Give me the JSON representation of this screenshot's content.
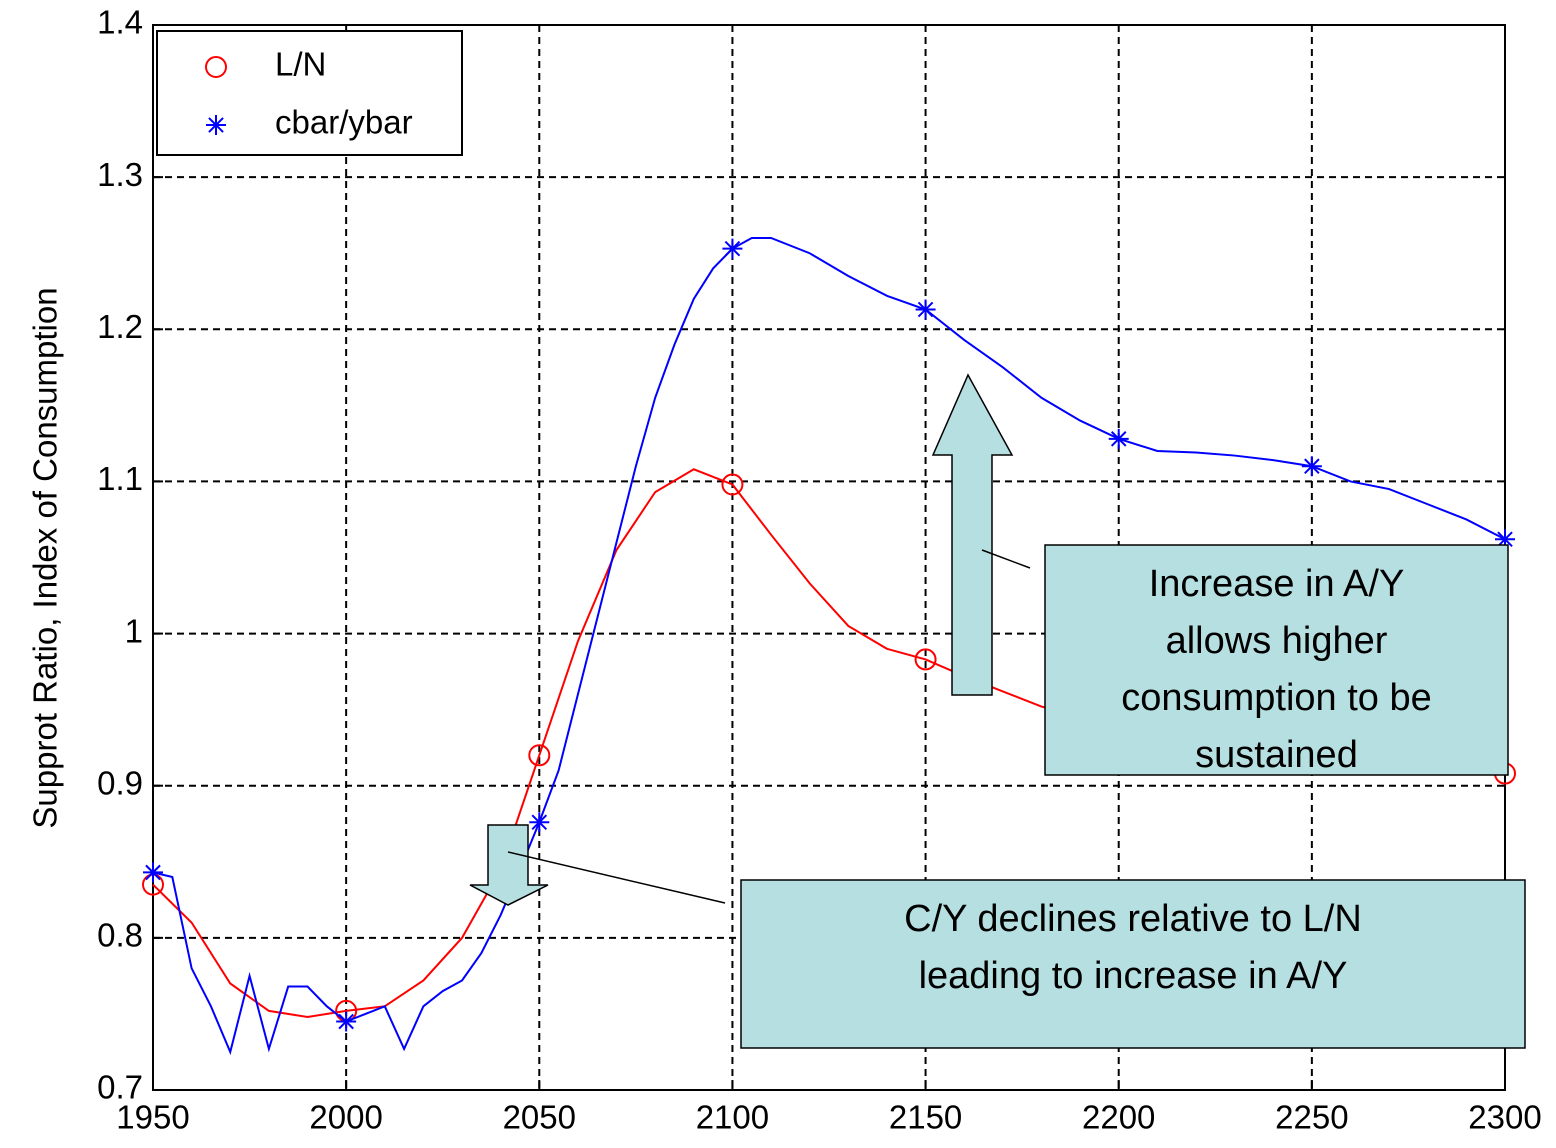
{
  "chart_data": {
    "type": "line",
    "y_label": "Supprot Ratio, Index of Consumption",
    "xlim": [
      1950,
      2300
    ],
    "xticks": [
      1950,
      2000,
      2050,
      2100,
      2150,
      2200,
      2250,
      2300
    ],
    "ylim": [
      0.7,
      1.4
    ],
    "yticks": [
      0.7,
      0.8,
      0.9,
      1,
      1.1,
      1.2,
      1.3,
      1.4
    ],
    "grid": true,
    "legend": "upper left",
    "series": [
      {
        "name": "L/N",
        "color": "#ff0000",
        "marker": "circle",
        "x": [
          1950,
          1960,
          1970,
          1980,
          1990,
          2000,
          2010,
          2020,
          2030,
          2040,
          2050,
          2060,
          2070,
          2080,
          2090,
          2100,
          2110,
          2120,
          2130,
          2140,
          2150,
          2160,
          2170,
          2180,
          2190,
          2200,
          2250,
          2300
        ],
        "values": [
          0.835,
          0.81,
          0.77,
          0.752,
          0.748,
          0.752,
          0.755,
          0.772,
          0.8,
          0.845,
          0.92,
          0.995,
          1.055,
          1.093,
          1.108,
          1.098,
          1.065,
          1.033,
          1.005,
          0.99,
          0.983,
          0.972,
          0.962,
          0.952,
          0.945,
          0.94,
          0.925,
          0.908
        ]
      },
      {
        "name": "cbar/ybar",
        "color": "#0000ff",
        "marker": "star",
        "x": [
          1950,
          1955,
          1960,
          1965,
          1970,
          1975,
          1980,
          1985,
          1990,
          1995,
          2000,
          2005,
          2010,
          2015,
          2020,
          2025,
          2030,
          2035,
          2040,
          2045,
          2050,
          2055,
          2060,
          2065,
          2070,
          2075,
          2080,
          2085,
          2090,
          2095,
          2100,
          2105,
          2110,
          2120,
          2130,
          2140,
          2150,
          2160,
          2170,
          2180,
          2190,
          2200,
          2210,
          2220,
          2230,
          2240,
          2250,
          2260,
          2270,
          2280,
          2290,
          2300
        ],
        "values": [
          0.843,
          0.84,
          0.78,
          0.755,
          0.725,
          0.775,
          0.727,
          0.768,
          0.768,
          0.755,
          0.745,
          0.75,
          0.755,
          0.727,
          0.755,
          0.765,
          0.772,
          0.79,
          0.815,
          0.845,
          0.876,
          0.91,
          0.96,
          1.01,
          1.06,
          1.11,
          1.155,
          1.19,
          1.22,
          1.24,
          1.253,
          1.26,
          1.26,
          1.25,
          1.235,
          1.222,
          1.213,
          1.193,
          1.175,
          1.155,
          1.14,
          1.128,
          1.12,
          1.119,
          1.117,
          1.114,
          1.11,
          1.1,
          1.095,
          1.085,
          1.075,
          1.062
        ]
      }
    ],
    "annotations": [
      {
        "lines": [
          "Increase in A/Y",
          "allows higher",
          "consumption to be",
          "sustained"
        ]
      },
      {
        "lines": [
          "C/Y declines relative to L/N",
          "leading to increase in A/Y"
        ]
      }
    ]
  }
}
